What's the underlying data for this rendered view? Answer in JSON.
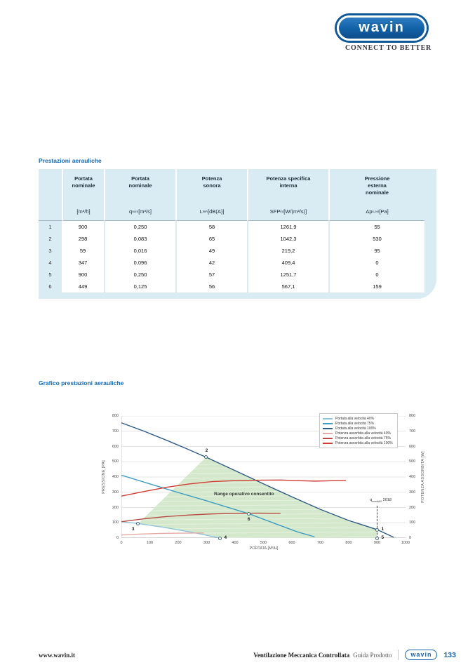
{
  "brand": {
    "logo_text": "wavin",
    "tagline": "CONNECT TO BETTER"
  },
  "sections": {
    "table_title": "Prestazioni aerauliche",
    "chart_title": "Grafico prestazioni aerauliche"
  },
  "table": {
    "headers": [
      "Portata nominale",
      "Portata nominale",
      "Potenza sonora",
      "Potenza specifica interna",
      "Pressione esterna nominale"
    ],
    "units": [
      {
        "pre": "[m³/h]",
        "sub": "",
        "post": ""
      },
      {
        "pre": "q",
        "sub": "nom",
        "post": " [m³/s]"
      },
      {
        "pre": "L",
        "sub": "WA",
        "post": " [dB(A)]"
      },
      {
        "pre": "SFP",
        "sub": "int",
        "post": " [W/(m³/s)]"
      },
      {
        "pre": "Δp",
        "sub": "s,ext",
        "post": " [Pa]"
      }
    ],
    "rows": [
      {
        "n": "1",
        "values": [
          "900",
          "0,250",
          "58",
          "1261,9",
          "55"
        ]
      },
      {
        "n": "2",
        "values": [
          "298",
          "0,083",
          "65",
          "1042,3",
          "530"
        ]
      },
      {
        "n": "3",
        "values": [
          "59",
          "0,016",
          "49",
          "219,2",
          "95"
        ]
      },
      {
        "n": "4",
        "values": [
          "347",
          "0,096",
          "42",
          "409,4",
          "0"
        ]
      },
      {
        "n": "5",
        "values": [
          "900",
          "0,250",
          "57",
          "1251,7",
          "0"
        ]
      },
      {
        "n": "6",
        "values": [
          "449",
          "0,125",
          "56",
          "567,1",
          "159"
        ]
      }
    ]
  },
  "chart_data": {
    "type": "line",
    "xlabel": "PORTATA [M³/H]",
    "ylabel_left": "PRESSIONE [PA]",
    "ylabel_right": "POTENZA ASSORBITA [W]",
    "xlim": [
      0,
      1000
    ],
    "ylim": [
      0,
      800
    ],
    "x_ticks": [
      0,
      100,
      200,
      300,
      400,
      500,
      600,
      700,
      800,
      900,
      1000
    ],
    "y_ticks_left": [
      0,
      100,
      200,
      300,
      400,
      500,
      600,
      700,
      800
    ],
    "y_ticks_right": [
      0,
      100,
      200,
      300,
      400,
      500,
      600,
      700,
      800
    ],
    "grid": "horizontal",
    "legend_position": "top-right",
    "series": [
      {
        "name": "Portata alla velocità 40%",
        "color": "#8fc3d9",
        "axis": "left",
        "points": [
          [
            0,
            107
          ],
          [
            59,
            95
          ],
          [
            150,
            70
          ],
          [
            250,
            37
          ],
          [
            347,
            0
          ]
        ]
      },
      {
        "name": "Portata alla velocità 75%",
        "color": "#3d9cbf",
        "axis": "left",
        "points": [
          [
            0,
            412
          ],
          [
            100,
            355
          ],
          [
            200,
            298
          ],
          [
            300,
            244
          ],
          [
            380,
            198
          ],
          [
            449,
            159
          ],
          [
            540,
            95
          ],
          [
            620,
            40
          ],
          [
            680,
            8
          ]
        ]
      },
      {
        "name": "Portata alla velocità 100%",
        "color": "#2f5b85",
        "axis": "left",
        "points": [
          [
            0,
            755
          ],
          [
            80,
            700
          ],
          [
            160,
            640
          ],
          [
            230,
            585
          ],
          [
            298,
            530
          ],
          [
            400,
            442
          ],
          [
            500,
            355
          ],
          [
            600,
            270
          ],
          [
            700,
            188
          ],
          [
            800,
            115
          ],
          [
            900,
            55
          ],
          [
            958,
            5
          ]
        ]
      },
      {
        "name": "Potenza assorbita alla velocità 40%",
        "color": "#e5a9a4",
        "axis": "right",
        "points": [
          [
            0,
            20
          ],
          [
            70,
            26
          ],
          [
            140,
            30
          ],
          [
            210,
            32
          ],
          [
            290,
            33
          ]
        ]
      },
      {
        "name": "Potenza assorbita alla velocità 75%",
        "color": "#b94a44",
        "axis": "right",
        "points": [
          [
            0,
            107
          ],
          [
            80,
            126
          ],
          [
            160,
            141
          ],
          [
            240,
            151
          ],
          [
            320,
            158
          ],
          [
            400,
            162
          ],
          [
            480,
            163
          ],
          [
            560,
            162
          ]
        ]
      },
      {
        "name": "Potenza assorbita alla velocità 100%",
        "color": "#d13b30",
        "axis": "right",
        "points": [
          [
            0,
            275
          ],
          [
            80,
            305
          ],
          [
            160,
            333
          ],
          [
            240,
            355
          ],
          [
            320,
            370
          ],
          [
            400,
            376
          ],
          [
            480,
            379
          ],
          [
            560,
            380
          ],
          [
            620,
            376
          ],
          [
            680,
            373
          ],
          [
            730,
            375
          ],
          [
            790,
            378
          ]
        ]
      }
    ],
    "region": {
      "label": "Range operativo consentito",
      "color": "#cfe6c6",
      "points": [
        [
          59,
          95
        ],
        [
          298,
          530
        ],
        [
          400,
          442
        ],
        [
          500,
          355
        ],
        [
          600,
          270
        ],
        [
          700,
          188
        ],
        [
          800,
          115
        ],
        [
          900,
          55
        ],
        [
          900,
          0
        ],
        [
          347,
          0
        ],
        [
          250,
          37
        ],
        [
          150,
          70
        ]
      ]
    },
    "markers": [
      {
        "label": "1",
        "x": 900,
        "y": 55,
        "label_pos": "right"
      },
      {
        "label": "2",
        "x": 298,
        "y": 530,
        "label_pos": "above"
      },
      {
        "label": "3",
        "x": 59,
        "y": 95,
        "label_pos": "below-left"
      },
      {
        "label": "4",
        "x": 347,
        "y": 0,
        "label_pos": "right"
      },
      {
        "label": "5",
        "x": 900,
        "y": 0,
        "label_pos": "right"
      },
      {
        "label": "6",
        "x": 449,
        "y": 159,
        "label_pos": "below"
      }
    ],
    "annotation": {
      "pre": "q",
      "sub": "nomMAX",
      "post": " 2018",
      "x": 900,
      "y_top": 210,
      "y_bottom": 0
    }
  },
  "footer": {
    "site": "www.wavin.it",
    "doc_title": "Ventilazione Meccanica Controllata",
    "doc_subtitle": "Guida Prodotto",
    "logo_text": "wavin",
    "page": "133"
  }
}
